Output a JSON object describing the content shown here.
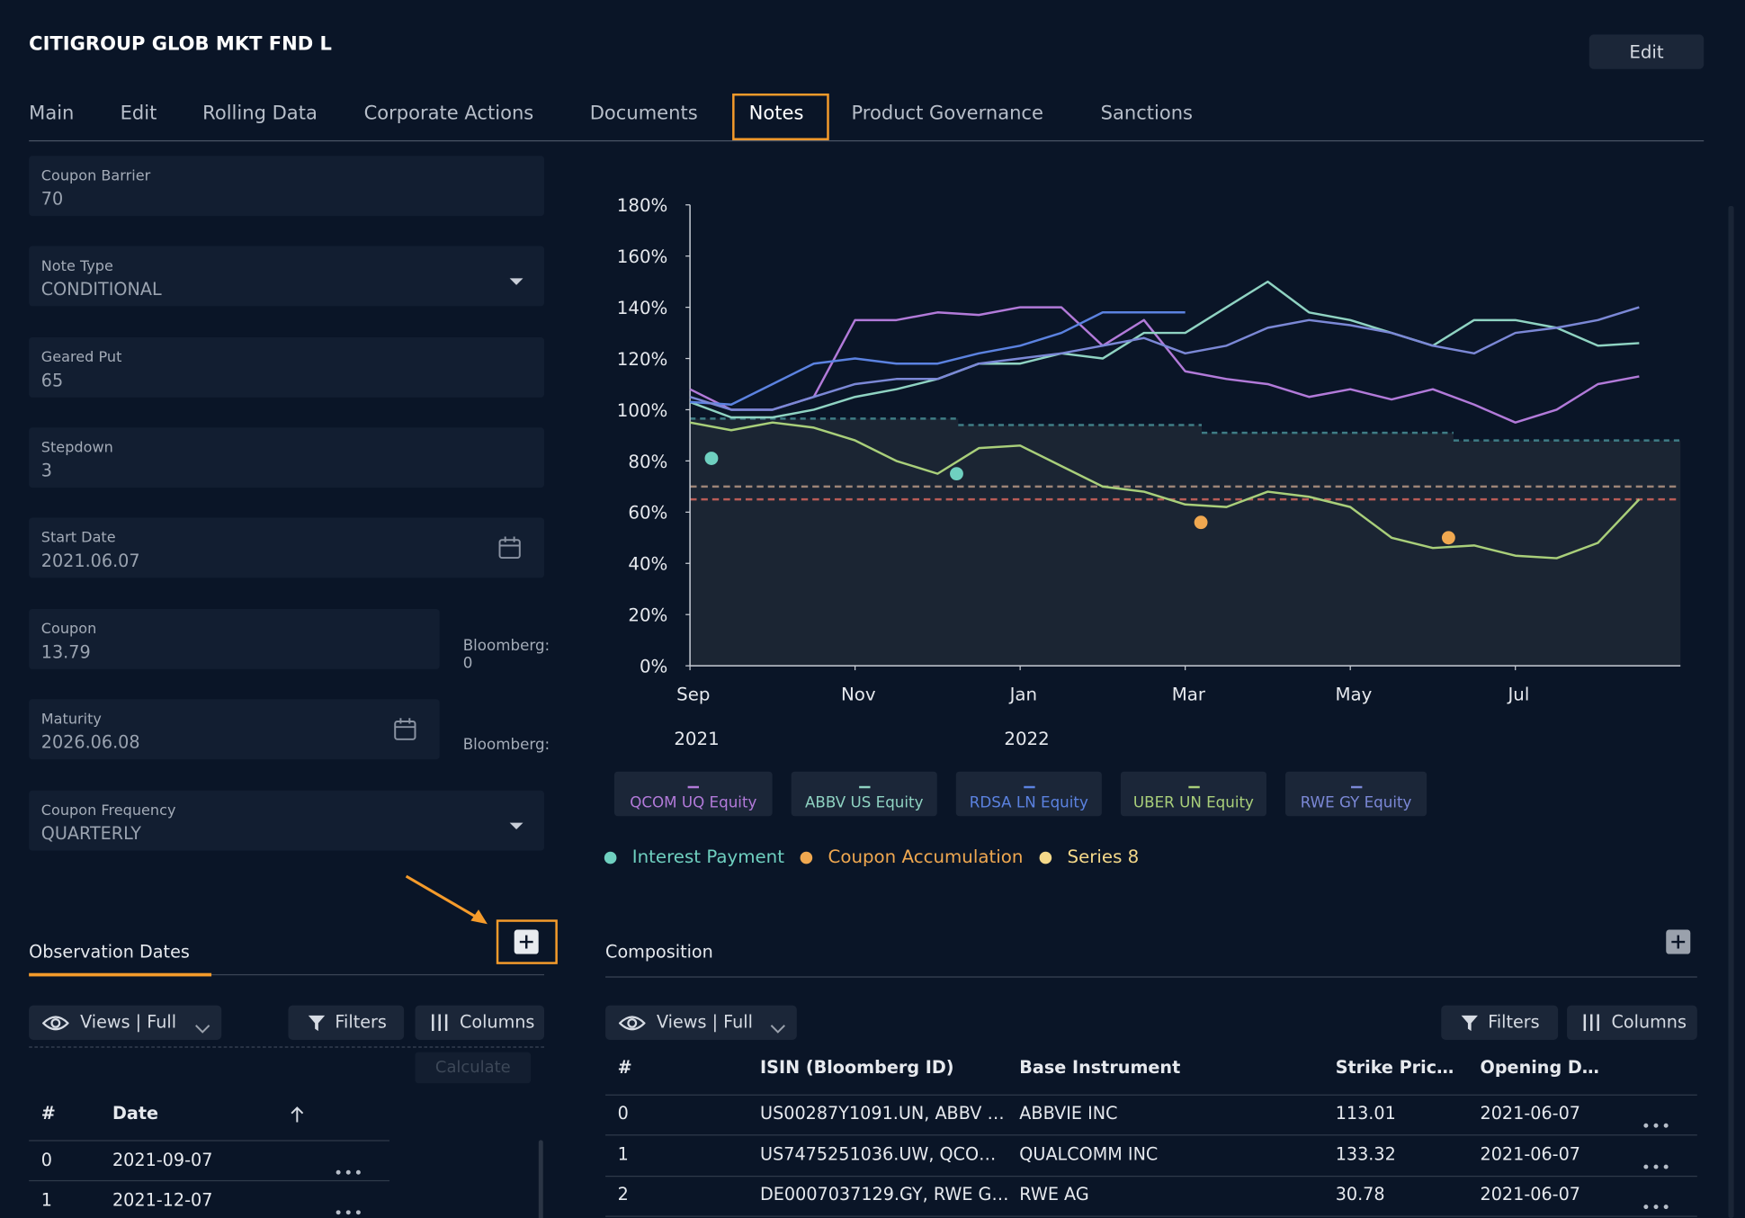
{
  "header": {
    "title": "CITIGROUP GLOB MKT FND L",
    "edit_button": "Edit"
  },
  "tabs": {
    "items": [
      "Main",
      "Edit",
      "Rolling Data",
      "Corporate Actions",
      "Documents",
      "Notes",
      "Product Governance",
      "Sanctions"
    ],
    "active_index": 5
  },
  "fields": [
    {
      "label": "Coupon Barrier",
      "value": "70"
    },
    {
      "label": "Note Type",
      "value": "CONDITIONAL",
      "control": "dropdown"
    },
    {
      "label": "Geared Put",
      "value": "65"
    },
    {
      "label": "Stepdown",
      "value": "3"
    },
    {
      "label": "Start Date",
      "value": "2021.06.07",
      "control": "calendar"
    },
    {
      "label": "Coupon",
      "value": "13.79",
      "side_label": "Bloomberg:",
      "side_value": "0"
    },
    {
      "label": "Maturity",
      "value": "2026.06.08",
      "control": "calendar",
      "side_label": "Bloomberg:"
    },
    {
      "label": "Coupon Frequency",
      "value": "QUARTERLY",
      "control": "dropdown"
    }
  ],
  "observation": {
    "title": "Observation Dates",
    "views": "Views | Full",
    "filters": "Filters",
    "columns_button": "Columns",
    "calculate": "Calculate",
    "columns": [
      "#",
      "Date"
    ],
    "rows": [
      [
        "0",
        "2021-09-07"
      ],
      [
        "1",
        "2021-12-07"
      ]
    ]
  },
  "composition": {
    "title": "Composition",
    "views": "Views | Full",
    "filters": "Filters",
    "columns_button": "Columns",
    "columns": [
      "#",
      "ISIN (Bloomberg ID)",
      "Base Instrument",
      "Strike Pric…",
      "Opening D…"
    ],
    "rows": [
      [
        "0",
        "US00287Y1091.UN, ABBV …",
        "ABBVIE INC",
        "113.01",
        "2021-06-07"
      ],
      [
        "1",
        "US7475251036.UW, QCO…",
        "QUALCOMM INC",
        "133.32",
        "2021-06-07"
      ],
      [
        "2",
        "DE0007037129.GY, RWE G…",
        "RWE AG",
        "30.78",
        "2021-06-07"
      ]
    ]
  },
  "chart": {
    "type": "line",
    "x": [
      0,
      0.5,
      1,
      1.5,
      2,
      2.5,
      3,
      3.5,
      4,
      4.5,
      5,
      5.5,
      6,
      6.5,
      7,
      7.5,
      8,
      8.5,
      9,
      9.5,
      10,
      10.5,
      11,
      11.5
    ],
    "xlim": [
      0,
      12
    ],
    "xticks": [
      {
        "value": 0,
        "label": "Sep"
      },
      {
        "value": 2,
        "label": "Nov"
      },
      {
        "value": 4,
        "label": "Jan"
      },
      {
        "value": 6,
        "label": "Mar"
      },
      {
        "value": 8,
        "label": "May"
      },
      {
        "value": 10,
        "label": "Jul"
      }
    ],
    "year_labels": [
      {
        "value": 0,
        "label": "2021"
      },
      {
        "value": 4,
        "label": "2022"
      }
    ],
    "ylim": [
      0,
      180
    ],
    "yticks": [
      {
        "value": 0,
        "label": "0%"
      },
      {
        "value": 20,
        "label": "20%"
      },
      {
        "value": 40,
        "label": "40%"
      },
      {
        "value": 60,
        "label": "60%"
      },
      {
        "value": 80,
        "label": "80%"
      },
      {
        "value": 100,
        "label": "100%"
      },
      {
        "value": 120,
        "label": "120%"
      },
      {
        "value": 140,
        "label": "140%"
      },
      {
        "value": 160,
        "label": "160%"
      },
      {
        "value": 180,
        "label": "180%"
      }
    ],
    "series": [
      {
        "name": "QCOM UQ Equity",
        "color": "#b27ad9",
        "values": [
          108,
          100,
          100,
          105,
          135,
          135,
          138,
          137,
          140,
          140,
          125,
          135,
          115,
          112,
          110,
          105,
          108,
          104,
          108,
          102,
          95,
          100,
          110,
          113
        ]
      },
      {
        "name": "ABBV US Equity",
        "color": "#8fd3c2",
        "values": [
          103,
          97,
          97,
          100,
          105,
          108,
          112,
          118,
          118,
          122,
          120,
          130,
          130,
          140,
          150,
          138,
          135,
          130,
          125,
          135,
          135,
          132,
          125,
          126
        ]
      },
      {
        "name": "RDSA LN Equity",
        "color": "#5b82e0",
        "values": [
          103,
          102,
          110,
          118,
          120,
          118,
          118,
          122,
          125,
          130,
          138,
          138,
          138,
          null,
          null,
          null,
          null,
          null,
          null,
          null,
          null,
          null,
          null,
          null
        ]
      },
      {
        "name": "UBER UN Equity",
        "color": "#a9cf7a",
        "values": [
          95,
          92,
          95,
          93,
          88,
          80,
          75,
          85,
          86,
          78,
          70,
          68,
          63,
          62,
          68,
          66,
          62,
          50,
          46,
          47,
          43,
          42,
          48,
          65
        ]
      },
      {
        "name": "RWE GY Equity",
        "color": "#7b88d6",
        "values": [
          105,
          100,
          100,
          105,
          110,
          112,
          112,
          118,
          120,
          122,
          125,
          128,
          122,
          125,
          132,
          135,
          133,
          130,
          125,
          122,
          130,
          132,
          135,
          140
        ]
      }
    ],
    "stepdown": {
      "color": "#3f7d86",
      "segments": [
        {
          "x0": 0,
          "x1": 3.25,
          "y": 96.5
        },
        {
          "x0": 3.25,
          "x1": 6.2,
          "y": 94
        },
        {
          "x0": 6.2,
          "x1": 9.25,
          "y": 91
        },
        {
          "x0": 9.25,
          "x1": 12,
          "y": 88
        }
      ]
    },
    "reference_lines": [
      {
        "value": 70,
        "color": "#9c8477"
      },
      {
        "value": 65,
        "color": "#b85c57"
      }
    ],
    "point_series": [
      {
        "name": "Interest Payment",
        "color": "#6fd0c0",
        "points": [
          {
            "x": 0.26,
            "y": 81
          },
          {
            "x": 3.23,
            "y": 75
          }
        ]
      },
      {
        "name": "Coupon Accumulation",
        "color": "#f0a850",
        "points": [
          {
            "x": 6.19,
            "y": 56
          },
          {
            "x": 9.19,
            "y": 50
          }
        ]
      },
      {
        "name": "Series 8",
        "color": "#f5d98a",
        "points": []
      }
    ]
  }
}
